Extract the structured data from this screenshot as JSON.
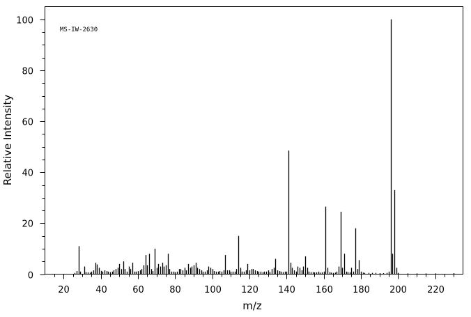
{
  "chart_data": {
    "type": "bar",
    "title": "",
    "annotation": "MS-IW-2630",
    "xlabel": "m/z",
    "ylabel": "Relative Intensity",
    "xlim": [
      10,
      235
    ],
    "ylim": [
      0,
      105
    ],
    "x_ticks": [
      20,
      40,
      60,
      80,
      100,
      120,
      140,
      160,
      180,
      200,
      220
    ],
    "y_ticks": [
      0,
      20,
      40,
      60,
      80,
      100
    ],
    "grid": false,
    "bar_color": "#000000",
    "peaks": [
      [
        26,
        0.5
      ],
      [
        27,
        1.2
      ],
      [
        28,
        11.0
      ],
      [
        29,
        1.0
      ],
      [
        31,
        3.0
      ],
      [
        32,
        0.8
      ],
      [
        33,
        0.7
      ],
      [
        34,
        0.6
      ],
      [
        35,
        1.0
      ],
      [
        36,
        1.5
      ],
      [
        37,
        4.5
      ],
      [
        38,
        3.8
      ],
      [
        39,
        2.5
      ],
      [
        40,
        1.3
      ],
      [
        41,
        1.0
      ],
      [
        42,
        1.5
      ],
      [
        43,
        1.2
      ],
      [
        44,
        1.0
      ],
      [
        45,
        0.8
      ],
      [
        46,
        1.0
      ],
      [
        47,
        1.5
      ],
      [
        48,
        2.0
      ],
      [
        49,
        2.5
      ],
      [
        50,
        4.0
      ],
      [
        51,
        2.0
      ],
      [
        52,
        5.0
      ],
      [
        53,
        2.0
      ],
      [
        54,
        1.0
      ],
      [
        55,
        3.0
      ],
      [
        56,
        2.0
      ],
      [
        57,
        4.5
      ],
      [
        58,
        1.0
      ],
      [
        59,
        1.0
      ],
      [
        60,
        1.2
      ],
      [
        61,
        1.5
      ],
      [
        62,
        2.0
      ],
      [
        63,
        3.5
      ],
      [
        64,
        7.5
      ],
      [
        65,
        3.5
      ],
      [
        66,
        8.0
      ],
      [
        67,
        2.0
      ],
      [
        68,
        1.2
      ],
      [
        69,
        10.0
      ],
      [
        70,
        2.5
      ],
      [
        71,
        4.0
      ],
      [
        72,
        3.0
      ],
      [
        73,
        4.5
      ],
      [
        74,
        3.0
      ],
      [
        75,
        3.5
      ],
      [
        76,
        8.0
      ],
      [
        77,
        2.0
      ],
      [
        78,
        1.0
      ],
      [
        79,
        1.0
      ],
      [
        80,
        0.8
      ],
      [
        81,
        1.0
      ],
      [
        82,
        2.0
      ],
      [
        83,
        2.0
      ],
      [
        84,
        1.5
      ],
      [
        85,
        2.5
      ],
      [
        86,
        1.5
      ],
      [
        87,
        4.0
      ],
      [
        88,
        2.5
      ],
      [
        89,
        3.0
      ],
      [
        90,
        3.5
      ],
      [
        91,
        4.5
      ],
      [
        92,
        2.5
      ],
      [
        93,
        2.0
      ],
      [
        94,
        1.5
      ],
      [
        95,
        1.0
      ],
      [
        96,
        1.0
      ],
      [
        97,
        1.5
      ],
      [
        98,
        3.0
      ],
      [
        99,
        2.5
      ],
      [
        100,
        2.0
      ],
      [
        101,
        1.2
      ],
      [
        102,
        1.0
      ],
      [
        103,
        1.0
      ],
      [
        104,
        1.2
      ],
      [
        105,
        1.0
      ],
      [
        106,
        1.5
      ],
      [
        107,
        7.5
      ],
      [
        108,
        1.5
      ],
      [
        109,
        1.5
      ],
      [
        110,
        1.0
      ],
      [
        111,
        1.0
      ],
      [
        112,
        1.0
      ],
      [
        113,
        2.0
      ],
      [
        114,
        15.0
      ],
      [
        115,
        2.5
      ],
      [
        116,
        1.0
      ],
      [
        117,
        1.0
      ],
      [
        118,
        1.5
      ],
      [
        119,
        4.0
      ],
      [
        120,
        1.5
      ],
      [
        121,
        2.0
      ],
      [
        122,
        2.0
      ],
      [
        123,
        1.5
      ],
      [
        124,
        1.2
      ],
      [
        125,
        1.0
      ],
      [
        126,
        1.0
      ],
      [
        127,
        0.8
      ],
      [
        128,
        1.0
      ],
      [
        129,
        1.0
      ],
      [
        130,
        1.5
      ],
      [
        131,
        0.8
      ],
      [
        132,
        2.0
      ],
      [
        133,
        2.5
      ],
      [
        134,
        6.0
      ],
      [
        135,
        1.5
      ],
      [
        136,
        1.2
      ],
      [
        137,
        1.0
      ],
      [
        138,
        0.8
      ],
      [
        139,
        1.0
      ],
      [
        140,
        1.0
      ],
      [
        141,
        48.5
      ],
      [
        142,
        4.5
      ],
      [
        143,
        2.5
      ],
      [
        144,
        1.5
      ],
      [
        145,
        1.0
      ],
      [
        146,
        3.0
      ],
      [
        147,
        2.5
      ],
      [
        148,
        1.5
      ],
      [
        149,
        3.0
      ],
      [
        150,
        7.0
      ],
      [
        151,
        2.5
      ],
      [
        152,
        1.0
      ],
      [
        153,
        0.8
      ],
      [
        154,
        0.8
      ],
      [
        155,
        0.7
      ],
      [
        156,
        0.7
      ],
      [
        157,
        1.0
      ],
      [
        158,
        0.6
      ],
      [
        159,
        0.7
      ],
      [
        160,
        1.0
      ],
      [
        161,
        26.5
      ],
      [
        162,
        2.5
      ],
      [
        163,
        0.8
      ],
      [
        164,
        0.6
      ],
      [
        165,
        0.5
      ],
      [
        166,
        0.6
      ],
      [
        167,
        1.0
      ],
      [
        168,
        3.0
      ],
      [
        169,
        24.5
      ],
      [
        170,
        2.5
      ],
      [
        171,
        8.0
      ],
      [
        172,
        1.0
      ],
      [
        173,
        0.8
      ],
      [
        174,
        0.7
      ],
      [
        175,
        2.5
      ],
      [
        176,
        1.0
      ],
      [
        177,
        18.0
      ],
      [
        178,
        2.0
      ],
      [
        179,
        5.5
      ],
      [
        180,
        1.0
      ],
      [
        181,
        0.6
      ],
      [
        182,
        0.5
      ],
      [
        184,
        0.5
      ],
      [
        186,
        0.5
      ],
      [
        188,
        0.5
      ],
      [
        190,
        0.4
      ],
      [
        192,
        0.4
      ],
      [
        194,
        0.5
      ],
      [
        195,
        1.0
      ],
      [
        196,
        100.0
      ],
      [
        197,
        8.0
      ],
      [
        198,
        33.0
      ],
      [
        199,
        2.5
      ],
      [
        200,
        0.5
      ],
      [
        205,
        0.3
      ],
      [
        210,
        0.3
      ],
      [
        215,
        0.3
      ],
      [
        220,
        0.3
      ],
      [
        230,
        0.4
      ]
    ]
  }
}
